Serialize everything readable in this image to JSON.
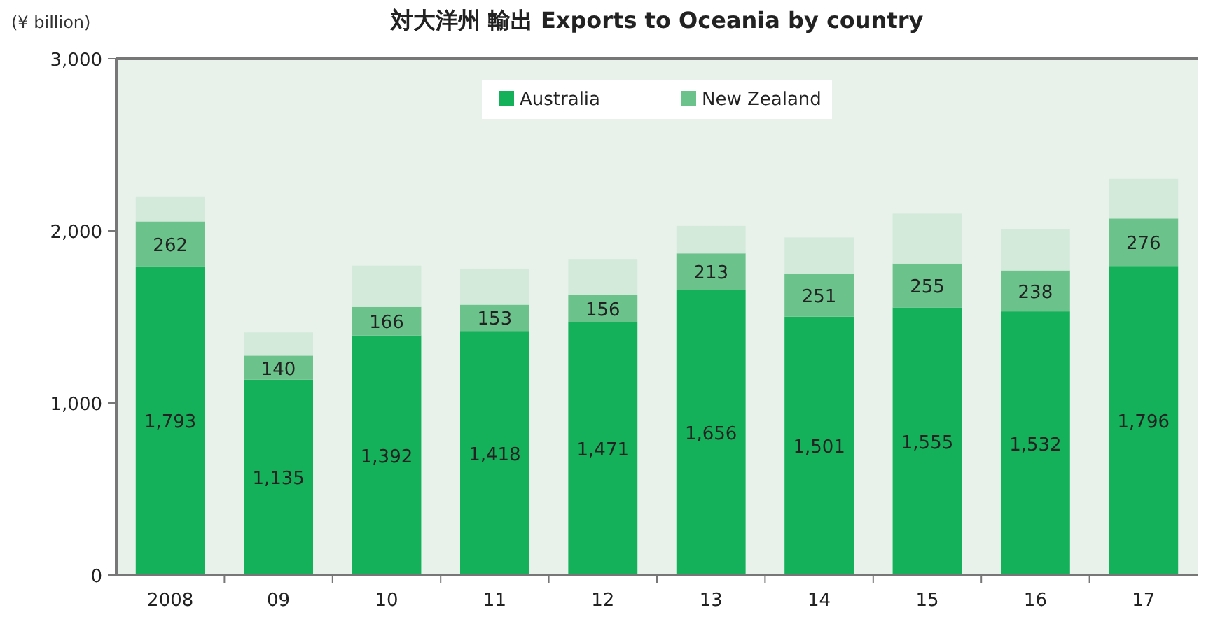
{
  "chart_data": {
    "type": "bar",
    "title": "対大洋州 輸出  Exports to Oceania by country",
    "ylabel": "(¥ billion)",
    "stacked": true,
    "legend": "top",
    "grid": false,
    "categories": [
      "2008",
      "09",
      "10",
      "11",
      "12",
      "13",
      "14",
      "15",
      "16",
      "17"
    ],
    "ylim": [
      0,
      3000
    ],
    "yticks": [
      0,
      {
        "value": 1000,
        "label": "1,000"
      },
      {
        "value": 2000,
        "label": "2,000"
      },
      {
        "value": 3000,
        "label": "3,000"
      }
    ],
    "series": [
      {
        "name": "Australia",
        "color": "#15b05a",
        "values": [
          1793,
          1135,
          1392,
          1418,
          1471,
          1656,
          1501,
          1555,
          1532,
          1796
        ],
        "value_labels": [
          "1,793",
          "1,135",
          "1,392",
          "1,418",
          "1,471",
          "1,656",
          "1,501",
          "1,555",
          "1,532",
          "1,796"
        ]
      },
      {
        "name": "New Zealand",
        "color": "#6cc28b",
        "values": [
          262,
          140,
          166,
          153,
          156,
          213,
          251,
          255,
          238,
          276
        ],
        "value_labels": [
          "262",
          "140",
          "166",
          "153",
          "156",
          "213",
          "251",
          "255",
          "238",
          "276"
        ]
      },
      {
        "color": "#d3eadb",
        "values": [
          145,
          135,
          240,
          210,
          210,
          160,
          210,
          290,
          240,
          230
        ]
      }
    ]
  }
}
